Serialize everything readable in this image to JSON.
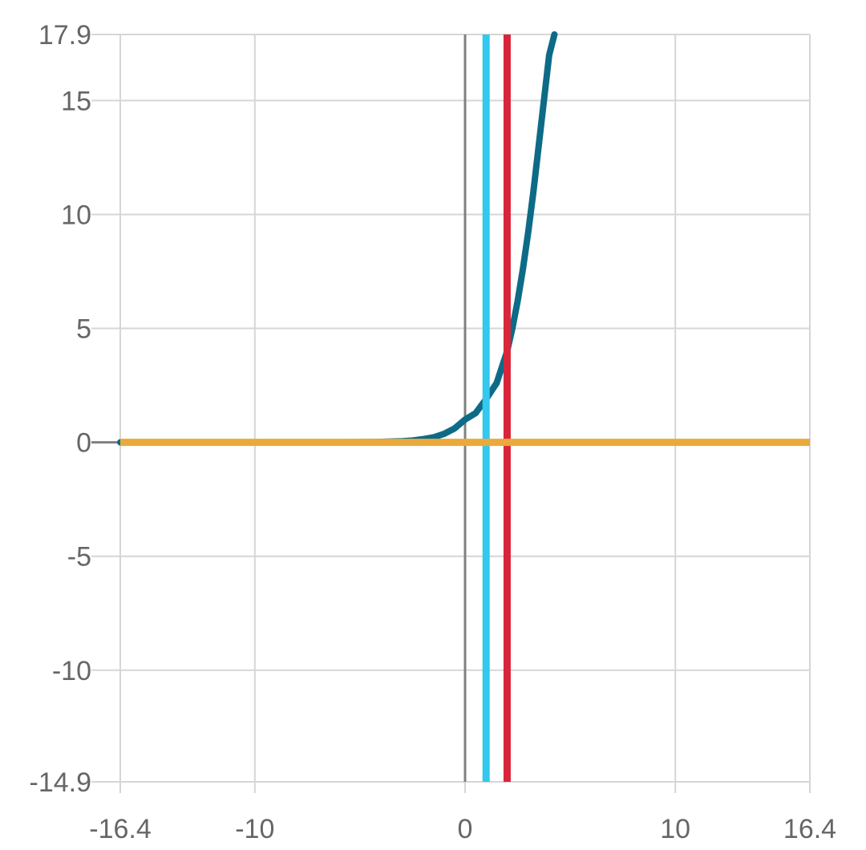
{
  "chart_data": {
    "type": "line",
    "title": "",
    "xlabel": "",
    "ylabel": "",
    "xlim": [
      -16.4,
      16.4
    ],
    "ylim": [
      -14.9,
      17.9
    ],
    "grid": true,
    "x_ticks": [
      {
        "value": -16.4,
        "label": "-16.4"
      },
      {
        "value": -10,
        "label": "-10"
      },
      {
        "value": 0,
        "label": "0"
      },
      {
        "value": 10,
        "label": "10"
      },
      {
        "value": 16.4,
        "label": "16.4"
      }
    ],
    "y_ticks": [
      {
        "value": 17.9,
        "label": "17.9"
      },
      {
        "value": 15,
        "label": "15"
      },
      {
        "value": 10,
        "label": "10"
      },
      {
        "value": 5,
        "label": "5"
      },
      {
        "value": 0,
        "label": "0"
      },
      {
        "value": -5,
        "label": "-5"
      },
      {
        "value": -10,
        "label": "-10"
      },
      {
        "value": -14.9,
        "label": "-14.9"
      }
    ],
    "series": [
      {
        "kind": "curve",
        "color": "#0d6b87",
        "x": [
          -16.4,
          -10,
          -7,
          -5,
          -4,
          -3,
          -2.5,
          -2,
          -1.5,
          -1,
          -0.5,
          0,
          0.5,
          1,
          1.5,
          2,
          2.25,
          2.5,
          2.75,
          3,
          3.25,
          3.5,
          3.75,
          4,
          4.25
        ],
        "y": [
          0,
          0,
          0,
          0.01,
          0.02,
          0.05,
          0.08,
          0.14,
          0.22,
          0.37,
          0.61,
          1.0,
          1.28,
          1.9,
          2.6,
          4.0,
          5.0,
          6.2,
          7.6,
          9.2,
          11.0,
          13.0,
          15.0,
          17.0,
          17.9
        ]
      },
      {
        "kind": "vertical",
        "color": "#33c8ee",
        "x": 1
      },
      {
        "kind": "vertical",
        "color": "#d9253a",
        "x": 2
      },
      {
        "kind": "horizontal",
        "color": "#eaa93c",
        "y": 0,
        "xmin": -16.4,
        "xmax": 16.4
      }
    ],
    "axis_color": "#808080",
    "grid_color": "#d6d6d6"
  }
}
